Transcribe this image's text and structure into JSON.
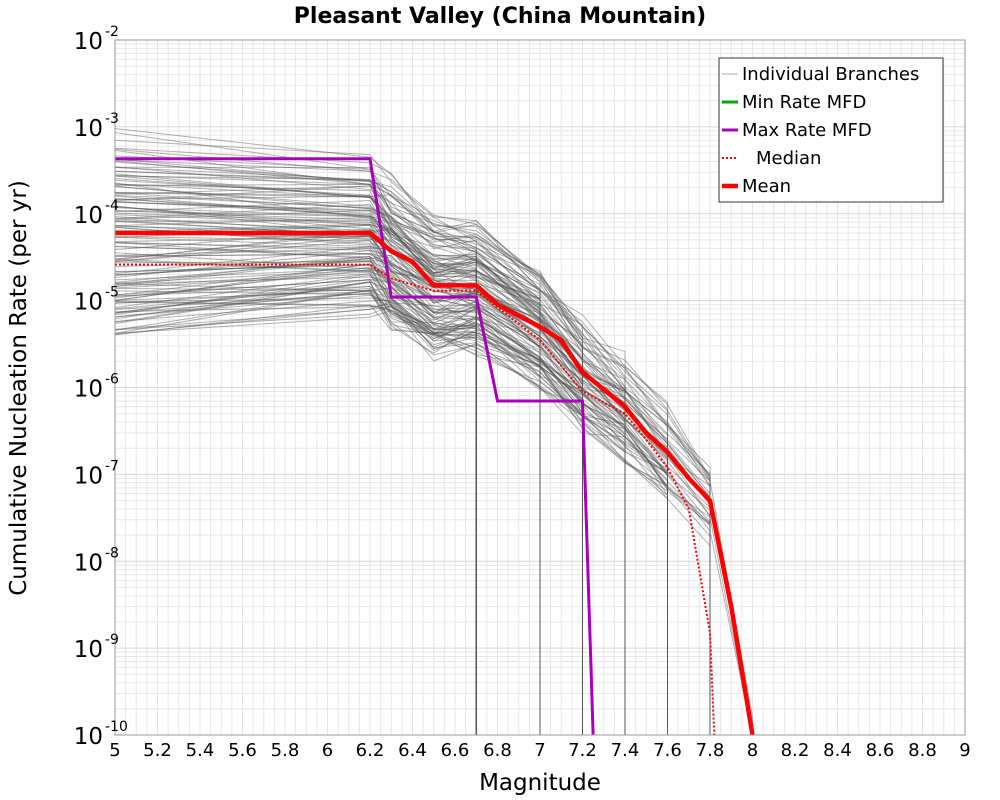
{
  "chart_data": {
    "type": "line",
    "title": "Pleasant Valley (China Mountain)",
    "xlabel": "Magnitude",
    "ylabel": "Cumulative Nucleation Rate (per yr)",
    "xlim": [
      5,
      9
    ],
    "ylim": [
      1e-10,
      0.01
    ],
    "yscale": "log",
    "grid": true,
    "legend_position": "top-right",
    "x_ticks": [
      "5",
      "5.2",
      "5.4",
      "5.6",
      "5.8",
      "6",
      "6.2",
      "6.4",
      "6.6",
      "6.8",
      "7",
      "7.2",
      "7.4",
      "7.6",
      "7.8",
      "8",
      "8.2",
      "8.4",
      "8.6",
      "8.8",
      "9"
    ],
    "y_ticks": [
      {
        "base": "10",
        "exp": "-2"
      },
      {
        "base": "10",
        "exp": "-3"
      },
      {
        "base": "10",
        "exp": "-4"
      },
      {
        "base": "10",
        "exp": "-5"
      },
      {
        "base": "10",
        "exp": "-6"
      },
      {
        "base": "10",
        "exp": "-7"
      },
      {
        "base": "10",
        "exp": "-8"
      },
      {
        "base": "10",
        "exp": "-9"
      },
      {
        "base": "10",
        "exp": "-10"
      }
    ],
    "series": [
      {
        "name": "Individual Branches",
        "color": "#555555",
        "style": "thin-solid-many",
        "x": [
          5,
          6.2,
          6.3,
          6.5,
          6.7,
          7.0,
          7.2,
          7.4,
          7.6,
          7.8,
          8.0
        ],
        "y": [
          6e-05,
          6e-05,
          3.5e-05,
          1.5e-05,
          1.5e-05,
          5e-06,
          1.5e-06,
          6e-07,
          1.8e-07,
          5e-08,
          1e-10
        ]
      },
      {
        "name": "Min Rate MFD",
        "color": "#00aa00",
        "style": "solid",
        "x": [],
        "y": []
      },
      {
        "name": "Max Rate MFD",
        "color": "#aa00bb",
        "style": "solid",
        "x": [
          5,
          6.2,
          6.3,
          6.7,
          6.8,
          7.2,
          7.25
        ],
        "y": [
          0.00043,
          0.00043,
          1.1e-05,
          1.1e-05,
          7e-07,
          7e-07,
          1e-10
        ]
      },
      {
        "name": "Median",
        "color": "#ff0000",
        "style": "dotted",
        "x": [
          5,
          6.2,
          6.3,
          6.5,
          6.7,
          7.0,
          7.2,
          7.4,
          7.5,
          7.6,
          7.7,
          7.8,
          7.82
        ],
        "y": [
          2.6e-05,
          2.6e-05,
          1.8e-05,
          1.3e-05,
          1.3e-05,
          3.5e-06,
          9e-07,
          5e-07,
          2.5e-07,
          1.2e-07,
          4e-08,
          1.5e-09,
          1e-10
        ]
      },
      {
        "name": "Mean",
        "color": "#ff0000",
        "style": "thick-solid",
        "x": [
          5,
          6.2,
          6.3,
          6.4,
          6.5,
          6.7,
          6.8,
          7.0,
          7.1,
          7.2,
          7.4,
          7.5,
          7.6,
          7.7,
          7.8,
          7.9,
          8.0
        ],
        "y": [
          6e-05,
          6e-05,
          3.7e-05,
          2.8e-05,
          1.5e-05,
          1.5e-05,
          9e-06,
          5e-06,
          3.5e-06,
          1.5e-06,
          6e-07,
          3e-07,
          1.8e-07,
          9e-08,
          5e-08,
          3e-09,
          1e-10
        ]
      }
    ]
  }
}
